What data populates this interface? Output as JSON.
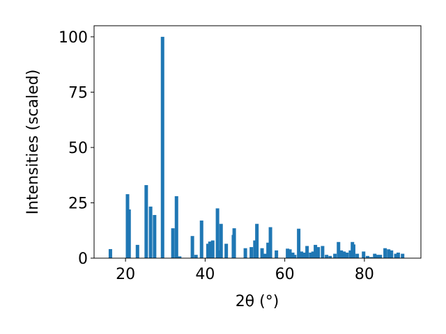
{
  "chart_data": {
    "type": "bar",
    "xlabel": "2θ (°)",
    "ylabel": "Intensities (scaled)",
    "color": "#1f77b4",
    "x": [
      16.2,
      20.5,
      20.9,
      23.0,
      25.2,
      26.3,
      27.3,
      29.3,
      31.9,
      32.8,
      33.6,
      36.8,
      37.7,
      39.1,
      40.7,
      41.2,
      41.9,
      43.1,
      43.6,
      44.0,
      45.3,
      47.1,
      47.3,
      50.1,
      51.6,
      52.5,
      53.0,
      54.3,
      55.1,
      55.8,
      56.4,
      57.9,
      60.7,
      61.3,
      62.0,
      62.5,
      63.5,
      64.2,
      64.9,
      65.6,
      66.5,
      67.1,
      67.7,
      68.4,
      69.5,
      70.5,
      71.4,
      72.6,
      73.5,
      74.2,
      74.9,
      75.6,
      76.5,
      77.0,
      77.3,
      78.2,
      79.8,
      80.8,
      81.7,
      82.6,
      83.3,
      84.0,
      85.2,
      86.1,
      86.8,
      87.9,
      88.5,
      89.6
    ],
    "values": [
      4.1,
      28.9,
      22,
      6,
      33,
      23.3,
      19.5,
      100,
      13.5,
      28,
      0.8,
      10,
      1.5,
      17,
      6.5,
      7.5,
      8,
      22.5,
      3.5,
      15.5,
      6.5,
      10.5,
      13.5,
      4.5,
      5,
      8,
      15.5,
      4.5,
      2,
      7,
      14,
      3.5,
      4.3,
      4,
      2.5,
      1.5,
      13.3,
      3,
      2.5,
      5.5,
      2.5,
      3,
      6,
      5,
      5.5,
      1.5,
      1,
      2,
      7.3,
      3.5,
      3,
      2.5,
      3.5,
      7.3,
      6.2,
      2,
      3,
      1,
      0.5,
      2,
      1.5,
      1.5,
      4.5,
      4,
      3.5,
      2,
      2.5,
      2
    ],
    "xlim": [
      12.1,
      94.2
    ],
    "xticks": [
      20,
      40,
      60,
      80
    ],
    "ylim": [
      0,
      105
    ],
    "yticks": [
      0,
      25,
      50,
      75,
      100
    ]
  }
}
